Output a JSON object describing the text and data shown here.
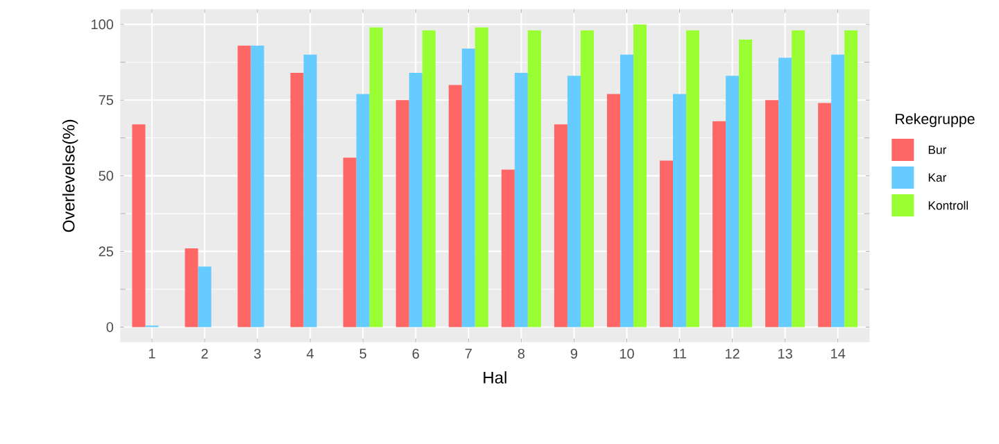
{
  "chart_data": {
    "type": "bar",
    "xlabel": "Hal",
    "ylabel": "Overlevelse(%)",
    "legend_title": "Rekegruppe",
    "categories": [
      "1",
      "2",
      "3",
      "4",
      "5",
      "6",
      "7",
      "8",
      "9",
      "10",
      "11",
      "12",
      "13",
      "14"
    ],
    "series": [
      {
        "name": "Bur",
        "color": "#ff6666",
        "values": [
          67,
          26,
          93,
          84,
          56,
          75,
          80,
          52,
          67,
          77,
          55,
          68,
          75,
          74
        ]
      },
      {
        "name": "Kar",
        "color": "#66ccff",
        "values": [
          0.5,
          20,
          93,
          90,
          77,
          84,
          92,
          84,
          83,
          90,
          77,
          83,
          89,
          90
        ]
      },
      {
        "name": "Kontroll",
        "color": "#99ff33",
        "values": [
          null,
          null,
          null,
          null,
          99,
          98,
          99,
          98,
          98,
          100,
          98,
          95,
          98,
          98
        ]
      }
    ],
    "ylim": [
      -5,
      105
    ],
    "yticks": [
      0,
      25,
      50,
      75,
      100
    ],
    "grid": true,
    "legend": "right"
  }
}
